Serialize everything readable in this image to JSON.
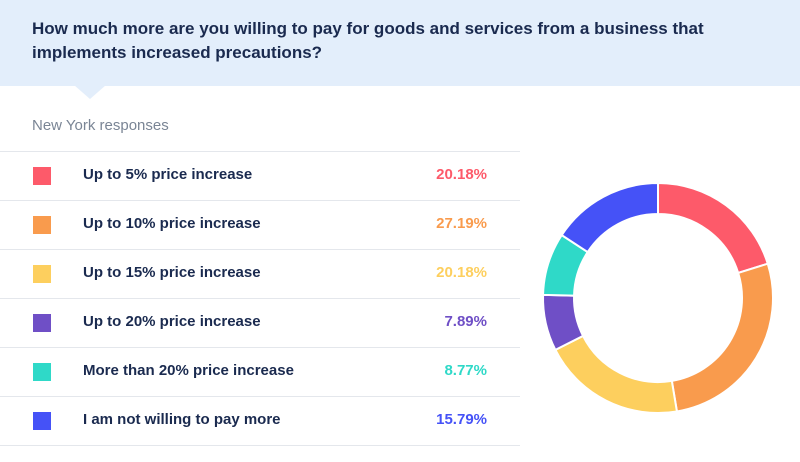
{
  "header": {
    "title": "How much more are you willing to pay for goods and services from a business that implements increased precautions?"
  },
  "subtitle": "New York responses",
  "chart_data": {
    "type": "pie",
    "donut": true,
    "title": "How much more are you willing to pay for goods and services from a business that implements increased precautions?",
    "subtitle": "New York responses",
    "categories": [
      "Up to 5% price increase",
      "Up to 10% price increase",
      "Up to 15% price increase",
      "Up to 20% price increase",
      "More than 20% price increase",
      "I am not willing to pay more"
    ],
    "values": [
      20.18,
      27.19,
      20.18,
      7.89,
      8.77,
      15.79
    ],
    "value_labels": [
      "20.18%",
      "27.19%",
      "20.18%",
      "7.89%",
      "8.77%",
      "15.79%"
    ],
    "colors": [
      "#fd5a6a",
      "#f99b4d",
      "#fdcf5e",
      "#6f4fc6",
      "#2fd9c8",
      "#4552f7"
    ],
    "legend_position": "left"
  }
}
